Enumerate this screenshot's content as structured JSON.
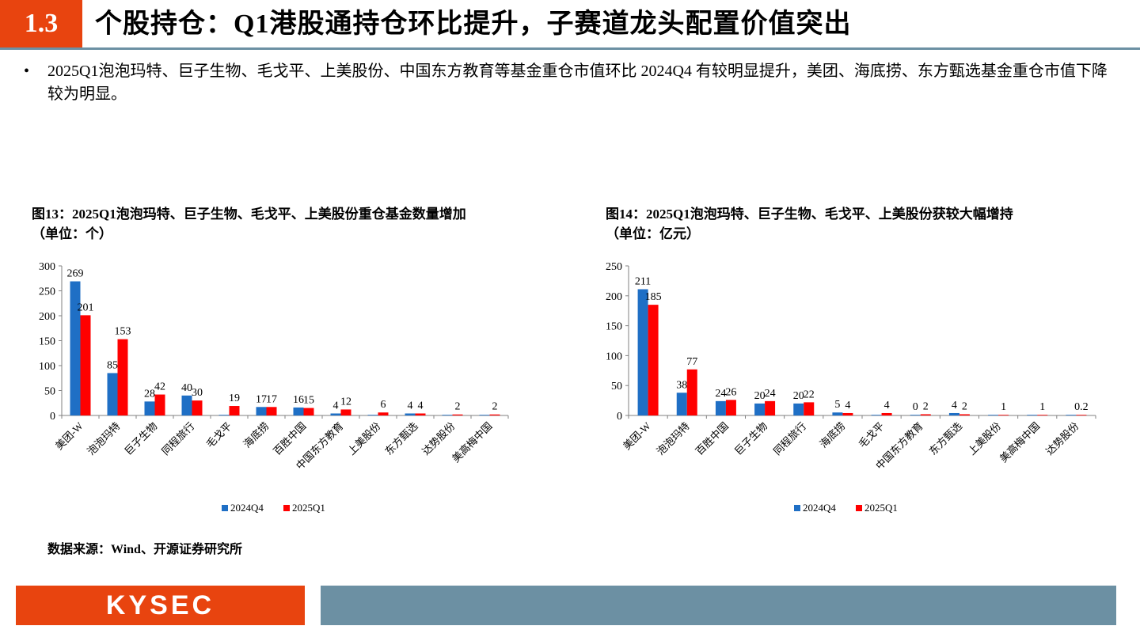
{
  "header": {
    "section_number": "1.3",
    "title": "个股持仓：Q1港股通持仓环比提升，子赛道龙头配置价值突出"
  },
  "bullet": {
    "marker": "•",
    "text": "2025Q1泡泡玛特、巨子生物、毛戈平、上美股份、中国东方教育等基金重仓市值环比 2024Q4 有较明显提升，美团、海底捞、东方甄选基金重仓市值下降较为明显。"
  },
  "figure13": {
    "title_line1": "图13：2025Q1泡泡玛特、巨子生物、毛戈平、上美股份重仓基金数量增加",
    "title_line2": "（单位：个）"
  },
  "figure14": {
    "title_line1": "图14：2025Q1泡泡玛特、巨子生物、毛戈平、上美股份获较大幅增持",
    "title_line2": "（单位：亿元）"
  },
  "chart_data": [
    {
      "type": "bar",
      "categories": [
        "美团-W",
        "泡泡玛特",
        "巨子生物",
        "同程旅行",
        "毛戈平",
        "海底捞",
        "百胜中国",
        "中国东方教育",
        "上美股份",
        "东方甄选",
        "达势股份",
        "美高梅中国"
      ],
      "series": [
        {
          "name": "2024Q4",
          "values": [
            269,
            85,
            28,
            40,
            0,
            17,
            16,
            4,
            0,
            4,
            0,
            0
          ],
          "labels": [
            "269",
            "85",
            "28",
            "40",
            "",
            "17",
            "16",
            "4",
            "",
            "4",
            "",
            ""
          ]
        },
        {
          "name": "2025Q1",
          "values": [
            201,
            153,
            42,
            30,
            19,
            17,
            15,
            12,
            6,
            4,
            2,
            2
          ],
          "labels": [
            "201",
            "153",
            "42",
            "30",
            "19",
            "17",
            "15",
            "12",
            "6",
            "4",
            "2",
            "2"
          ]
        }
      ],
      "ylim": [
        0,
        300
      ],
      "yticks": [
        0,
        50,
        100,
        150,
        200,
        250,
        300
      ],
      "legend": "bottom",
      "grid": false
    },
    {
      "type": "bar",
      "categories": [
        "美团-W",
        "泡泡玛特",
        "百胜中国",
        "巨子生物",
        "同程旅行",
        "海底捞",
        "毛戈平",
        "中国东方教育",
        "东方甄选",
        "上美股份",
        "美高梅中国",
        "达势股份"
      ],
      "series": [
        {
          "name": "2024Q4",
          "values": [
            211,
            38,
            24,
            20,
            20,
            5,
            0,
            0,
            4,
            0,
            0,
            0
          ],
          "labels": [
            "211",
            "38",
            "24",
            "20",
            "20",
            "5",
            "",
            "0",
            "4",
            "",
            "",
            ""
          ]
        },
        {
          "name": "2025Q1",
          "values": [
            185,
            77,
            26,
            24,
            22,
            4,
            4,
            2,
            2,
            1,
            1,
            0.2
          ],
          "labels": [
            "185",
            "77",
            "26",
            "24",
            "22",
            "4",
            "4",
            "2",
            "2",
            "1",
            "1",
            "0.2"
          ]
        }
      ],
      "ylim": [
        0,
        250
      ],
      "yticks": [
        0,
        50,
        100,
        150,
        200,
        250
      ],
      "legend": "bottom",
      "grid": false
    }
  ],
  "colors": {
    "series_2024Q4": "#1f6fc5",
    "series_2025Q1": "#ff0000",
    "accent": "#e8440f",
    "rule": "#6c90a3"
  },
  "source": "数据来源：Wind、开源证券研究所",
  "footer": {
    "logo_text": "KYSEC"
  }
}
